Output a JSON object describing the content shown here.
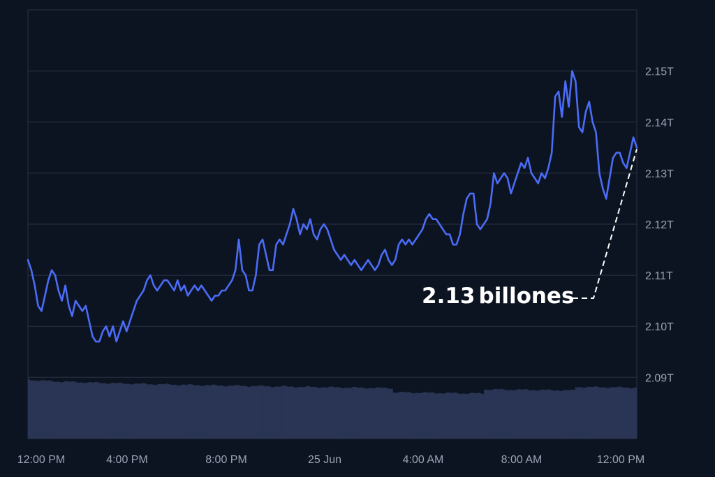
{
  "chart_data": {
    "type": "line",
    "title": "",
    "xlabel": "",
    "ylabel": "",
    "x_tick_labels": [
      "12:00 PM",
      "4:00 PM",
      "8:00 PM",
      "25 Jun",
      "4:00 AM",
      "8:00 AM",
      "12:00 PM"
    ],
    "y_ticks": [
      2.09,
      2.1,
      2.11,
      2.12,
      2.13,
      2.14,
      2.15
    ],
    "y_tick_labels": [
      "2.09T",
      "2.10T",
      "2.11T",
      "2.12T",
      "2.13T",
      "2.14T",
      "2.15T"
    ],
    "ylim": [
      2.078,
      2.162
    ],
    "grid": true,
    "y_axis_position": "right",
    "annotation": {
      "text": "2.13 billones",
      "value_label_number": "2.13",
      "value_label_word": "billones",
      "points_to": "last-value"
    },
    "series": [
      {
        "type": "line",
        "color": "#4a6cf7",
        "values": [
          2.113,
          2.111,
          2.108,
          2.104,
          2.103,
          2.106,
          2.109,
          2.111,
          2.11,
          2.107,
          2.105,
          2.108,
          2.104,
          2.102,
          2.105,
          2.104,
          2.103,
          2.104,
          2.101,
          2.098,
          2.097,
          2.097,
          2.099,
          2.1,
          2.098,
          2.1,
          2.097,
          2.099,
          2.101,
          2.099,
          2.101,
          2.103,
          2.105,
          2.106,
          2.107,
          2.109,
          2.11,
          2.108,
          2.107,
          2.108,
          2.109,
          2.109,
          2.108,
          2.107,
          2.109,
          2.107,
          2.108,
          2.106,
          2.107,
          2.108,
          2.107,
          2.108,
          2.107,
          2.106,
          2.105,
          2.106,
          2.106,
          2.107,
          2.107,
          2.108,
          2.109,
          2.111,
          2.117,
          2.111,
          2.11,
          2.107,
          2.107,
          2.11,
          2.116,
          2.117,
          2.114,
          2.111,
          2.111,
          2.116,
          2.117,
          2.116,
          2.118,
          2.12,
          2.123,
          2.121,
          2.118,
          2.12,
          2.119,
          2.121,
          2.118,
          2.117,
          2.119,
          2.12,
          2.119,
          2.117,
          2.115,
          2.114,
          2.113,
          2.114,
          2.113,
          2.112,
          2.113,
          2.112,
          2.111,
          2.112,
          2.113,
          2.112,
          2.111,
          2.112,
          2.114,
          2.115,
          2.113,
          2.112,
          2.113,
          2.116,
          2.117,
          2.116,
          2.117,
          2.116,
          2.117,
          2.118,
          2.119,
          2.121,
          2.122,
          2.121,
          2.121,
          2.12,
          2.119,
          2.118,
          2.118,
          2.116,
          2.116,
          2.118,
          2.122,
          2.125,
          2.126,
          2.126,
          2.12,
          2.119,
          2.12,
          2.121,
          2.124,
          2.13,
          2.128,
          2.129,
          2.13,
          2.129,
          2.126,
          2.128,
          2.13,
          2.132,
          2.131,
          2.133,
          2.13,
          2.129,
          2.128,
          2.13,
          2.129,
          2.131,
          2.134,
          2.145,
          2.146,
          2.141,
          2.148,
          2.143,
          2.15,
          2.148,
          2.139,
          2.138,
          2.142,
          2.144,
          2.14,
          2.138,
          2.13,
          2.127,
          2.125,
          2.129,
          2.133,
          2.134,
          2.134,
          2.132,
          2.131,
          2.134,
          2.137,
          2.135
        ]
      },
      {
        "type": "bar",
        "name": "",
        "color": "#2a3555",
        "note": "volume bars along the bottom, unscaled",
        "start_level": 0.92,
        "end_level": 0.82
      }
    ]
  }
}
